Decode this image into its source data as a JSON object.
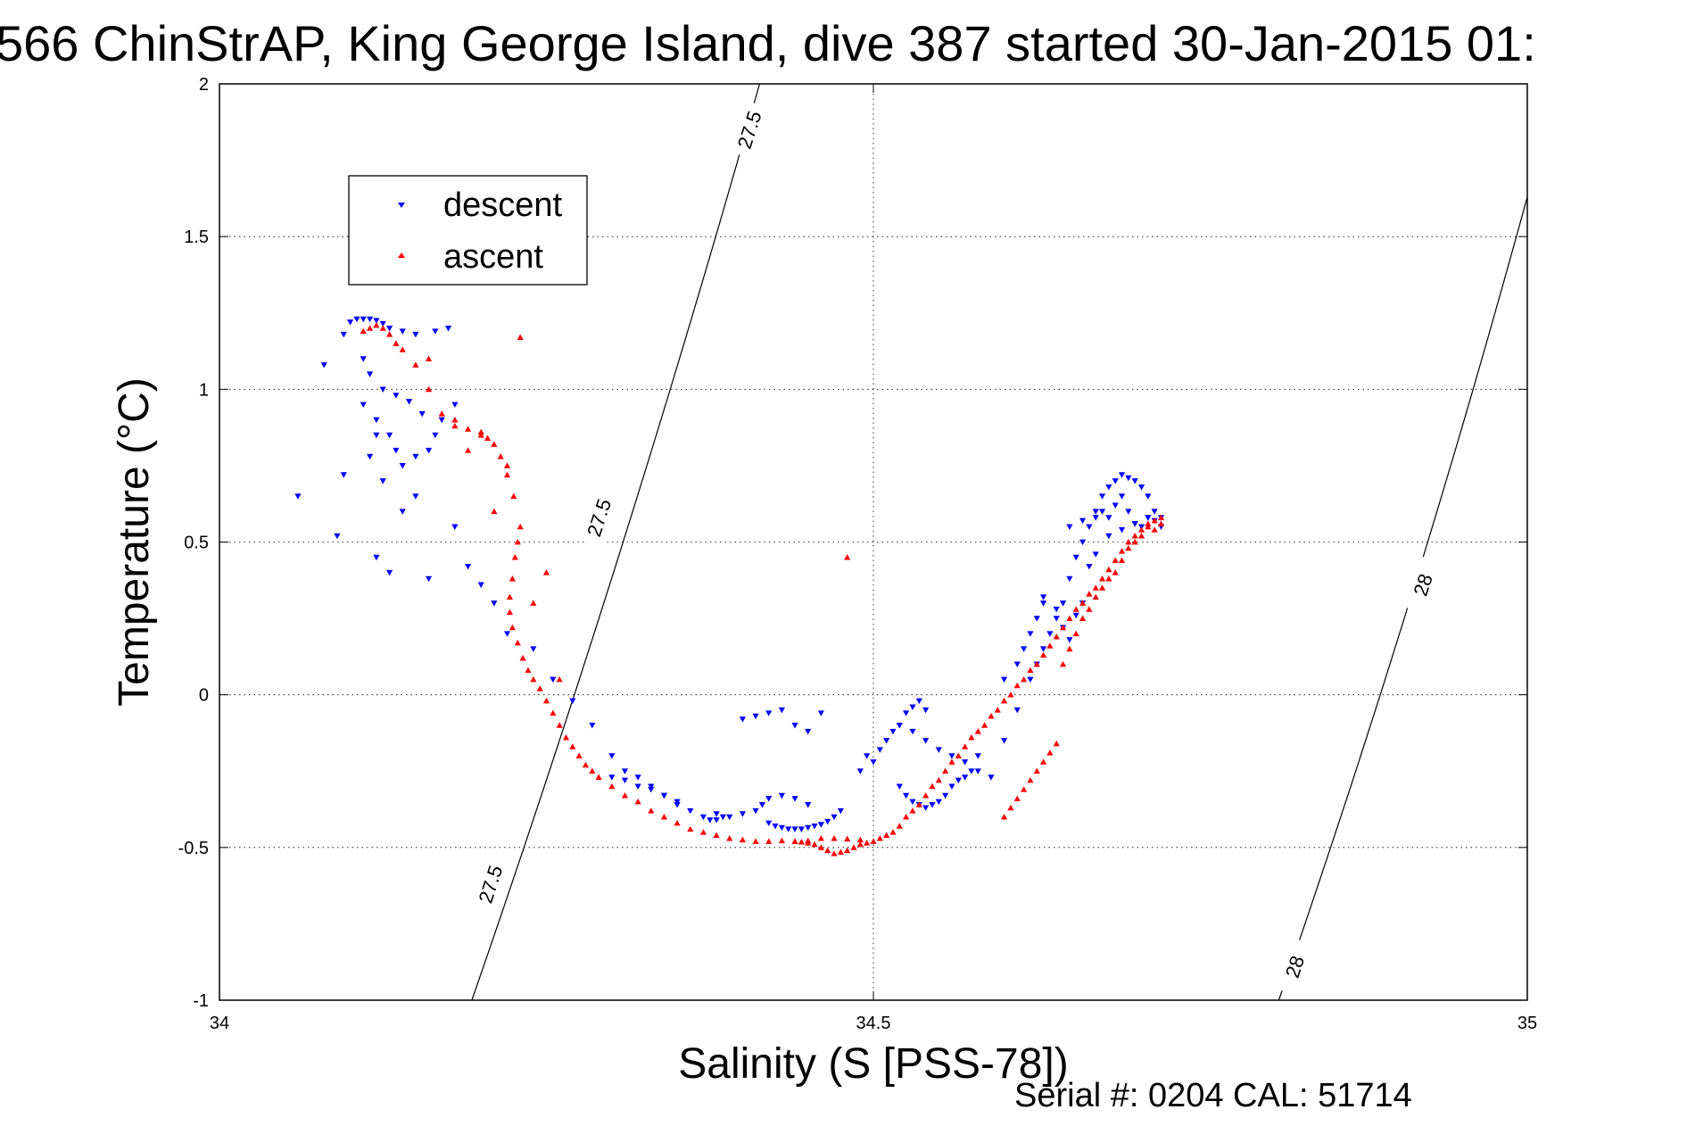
{
  "chart_data": {
    "type": "scatter",
    "title": "566 ChinStrAP, King George Island, dive 387 started 30-Jan-2015 01:",
    "xlabel": "Salinity (S [PSS-78])",
    "ylabel": "Temperature (°C)",
    "xlim": [
      34,
      35
    ],
    "ylim": [
      -1,
      2
    ],
    "x_ticks": [
      "34",
      "34.5",
      "35"
    ],
    "x_tick_values": [
      34,
      34.5,
      35
    ],
    "y_ticks": [
      "-1",
      "-0.5",
      "0",
      "0.5",
      "1",
      "1.5",
      "2"
    ],
    "y_tick_values": [
      -1,
      -0.5,
      0,
      0.5,
      1,
      1.5,
      2
    ],
    "grid": true,
    "legend_position": "top-left",
    "series": [
      {
        "name": "descent",
        "marker": "down-triangle",
        "color": "#0000ff",
        "x": [
          34.06,
          34.08,
          34.09,
          34.095,
          34.1,
          34.105,
          34.11,
          34.115,
          34.12,
          34.125,
          34.13,
          34.14,
          34.15,
          34.165,
          34.175,
          34.11,
          34.12,
          34.13,
          34.135,
          34.14,
          34.15,
          34.16,
          34.17,
          34.18,
          34.12,
          34.11,
          34.115,
          34.125,
          34.135,
          34.145,
          34.155,
          34.165,
          34.18,
          34.19,
          34.2,
          34.21,
          34.15,
          34.16,
          34.12,
          34.115,
          34.125,
          34.14,
          34.095,
          34.13,
          34.22,
          34.24,
          34.255,
          34.27,
          34.285,
          34.3,
          34.31,
          34.32,
          34.33,
          34.34,
          34.35,
          34.36,
          34.37,
          34.375,
          34.38,
          34.385,
          34.3,
          34.31,
          34.32,
          34.33,
          34.34,
          34.35,
          34.38,
          34.39,
          34.4,
          34.41,
          34.415,
          34.42,
          34.43,
          34.44,
          34.45,
          34.4,
          34.41,
          34.42,
          34.43,
          34.44,
          34.45,
          34.46,
          34.42,
          34.425,
          34.43,
          34.435,
          34.44,
          34.445,
          34.45,
          34.455,
          34.46,
          34.465,
          34.47,
          34.475,
          34.49,
          34.495,
          34.5,
          34.505,
          34.51,
          34.515,
          34.52,
          34.525,
          34.53,
          34.535,
          34.54,
          34.52,
          34.525,
          34.53,
          34.535,
          34.54,
          34.545,
          34.55,
          34.555,
          34.56,
          34.565,
          34.57,
          34.575,
          34.58,
          34.52,
          34.53,
          34.54,
          34.55,
          34.56,
          34.57,
          34.58,
          34.59,
          34.6,
          34.61,
          34.62,
          34.625,
          34.63,
          34.635,
          34.64,
          34.645,
          34.65,
          34.655,
          34.66,
          34.665,
          34.67,
          34.675,
          34.68,
          34.685,
          34.69,
          34.695,
          34.7,
          34.705,
          34.71,
          34.715,
          34.72,
          34.65,
          34.66,
          34.67,
          34.675,
          34.68,
          34.685,
          34.69,
          34.695,
          34.7,
          34.705,
          34.71,
          34.715,
          34.72,
          34.63,
          34.64,
          34.645,
          34.65,
          34.655,
          34.66,
          34.665,
          34.67,
          34.68,
          34.69,
          34.7,
          34.71,
          34.6,
          34.61,
          34.615,
          34.62,
          34.625,
          34.63
        ],
        "y": [
          0.65,
          1.08,
          0.52,
          1.18,
          1.22,
          1.23,
          1.23,
          1.23,
          1.225,
          1.215,
          1.2,
          1.19,
          1.18,
          1.19,
          1.2,
          0.95,
          0.9,
          0.85,
          0.8,
          0.75,
          0.78,
          0.8,
          0.9,
          0.95,
          0.45,
          1.1,
          1.05,
          1.0,
          0.98,
          0.96,
          0.92,
          0.85,
          0.55,
          0.42,
          0.36,
          0.3,
          0.65,
          0.38,
          0.85,
          0.78,
          0.7,
          0.6,
          0.72,
          0.4,
          0.2,
          0.15,
          0.05,
          -0.02,
          -0.1,
          -0.2,
          -0.25,
          -0.27,
          -0.3,
          -0.33,
          -0.35,
          -0.38,
          -0.4,
          -0.41,
          -0.41,
          -0.4,
          -0.27,
          -0.28,
          -0.3,
          -0.31,
          -0.33,
          -0.36,
          -0.39,
          -0.4,
          -0.39,
          -0.38,
          -0.36,
          -0.34,
          -0.33,
          -0.34,
          -0.36,
          -0.08,
          -0.07,
          -0.06,
          -0.05,
          -0.1,
          -0.12,
          -0.06,
          -0.42,
          -0.43,
          -0.435,
          -0.44,
          -0.44,
          -0.44,
          -0.435,
          -0.43,
          -0.425,
          -0.415,
          -0.4,
          -0.38,
          -0.25,
          -0.2,
          -0.22,
          -0.18,
          -0.15,
          -0.12,
          -0.1,
          -0.06,
          -0.04,
          -0.02,
          -0.05,
          -0.3,
          -0.33,
          -0.35,
          -0.36,
          -0.37,
          -0.36,
          -0.35,
          -0.33,
          -0.3,
          -0.28,
          -0.27,
          -0.25,
          -0.2,
          -0.1,
          -0.12,
          -0.15,
          -0.18,
          -0.2,
          -0.22,
          -0.25,
          -0.27,
          -0.15,
          -0.05,
          0.05,
          0.1,
          0.15,
          0.2,
          0.25,
          0.3,
          0.38,
          0.45,
          0.5,
          0.55,
          0.6,
          0.65,
          0.68,
          0.7,
          0.72,
          0.71,
          0.7,
          0.68,
          0.65,
          0.6,
          0.58,
          0.55,
          0.57,
          0.58,
          0.6,
          0.58,
          0.62,
          0.65,
          0.6,
          0.56,
          0.55,
          0.58,
          0.57,
          0.55,
          0.32,
          0.28,
          0.22,
          0.18,
          0.26,
          0.3,
          0.42,
          0.46,
          0.52,
          0.54,
          0.56,
          0.58,
          0.05,
          0.1,
          0.15,
          0.2,
          0.25,
          0.3
        ]
      },
      {
        "name": "ascent",
        "marker": "up-triangle",
        "color": "#ff0000",
        "x": [
          34.11,
          34.115,
          34.12,
          34.125,
          34.13,
          34.135,
          34.14,
          34.15,
          34.16,
          34.17,
          34.18,
          34.19,
          34.2,
          34.205,
          34.21,
          34.215,
          34.22,
          34.225,
          34.23,
          34.228,
          34.226,
          34.224,
          34.222,
          34.222,
          34.224,
          34.228,
          34.232,
          34.236,
          34.24,
          34.245,
          34.25,
          34.255,
          34.26,
          34.265,
          34.27,
          34.275,
          34.28,
          34.285,
          34.29,
          34.3,
          34.31,
          34.32,
          34.33,
          34.34,
          34.35,
          34.36,
          34.37,
          34.38,
          34.39,
          34.4,
          34.41,
          34.42,
          34.43,
          34.44,
          34.45,
          34.46,
          34.47,
          34.48,
          34.49,
          34.44,
          34.445,
          34.45,
          34.455,
          34.46,
          34.465,
          34.47,
          34.475,
          34.48,
          34.485,
          34.49,
          34.495,
          34.5,
          34.505,
          34.51,
          34.515,
          34.52,
          34.525,
          34.53,
          34.535,
          34.54,
          34.545,
          34.55,
          34.555,
          34.56,
          34.565,
          34.57,
          34.575,
          34.58,
          34.585,
          34.59,
          34.595,
          34.6,
          34.605,
          34.61,
          34.615,
          34.62,
          34.625,
          34.63,
          34.635,
          34.64,
          34.645,
          34.65,
          34.655,
          34.66,
          34.665,
          34.67,
          34.675,
          34.68,
          34.685,
          34.69,
          34.695,
          34.7,
          34.705,
          34.71,
          34.715,
          34.72,
          34.6,
          34.605,
          34.61,
          34.615,
          34.62,
          34.625,
          34.63,
          34.635,
          34.64,
          34.645,
          34.65,
          34.655,
          34.66,
          34.665,
          34.67,
          34.675,
          34.68,
          34.685,
          34.69,
          34.695,
          34.7,
          34.705,
          34.71,
          34.715,
          34.72,
          34.18,
          34.2,
          34.22,
          34.25,
          34.19,
          34.21,
          34.24,
          34.26,
          34.23,
          34.16,
          34.48
        ],
        "y": [
          1.19,
          1.2,
          1.21,
          1.2,
          1.18,
          1.15,
          1.13,
          1.08,
          1.0,
          0.92,
          0.88,
          0.87,
          0.86,
          0.84,
          0.82,
          0.78,
          0.72,
          0.65,
          0.55,
          0.5,
          0.45,
          0.38,
          0.32,
          0.27,
          0.22,
          0.17,
          0.12,
          0.08,
          0.05,
          0.02,
          -0.02,
          -0.06,
          -0.1,
          -0.14,
          -0.17,
          -0.2,
          -0.23,
          -0.25,
          -0.27,
          -0.3,
          -0.33,
          -0.35,
          -0.38,
          -0.4,
          -0.42,
          -0.44,
          -0.45,
          -0.46,
          -0.47,
          -0.475,
          -0.48,
          -0.48,
          -0.478,
          -0.48,
          -0.478,
          -0.47,
          -0.47,
          -0.472,
          -0.475,
          -0.48,
          -0.482,
          -0.485,
          -0.49,
          -0.5,
          -0.51,
          -0.52,
          -0.515,
          -0.51,
          -0.5,
          -0.49,
          -0.485,
          -0.48,
          -0.47,
          -0.46,
          -0.45,
          -0.43,
          -0.4,
          -0.38,
          -0.36,
          -0.33,
          -0.3,
          -0.28,
          -0.25,
          -0.22,
          -0.2,
          -0.17,
          -0.14,
          -0.12,
          -0.1,
          -0.07,
          -0.05,
          -0.02,
          0.0,
          0.03,
          0.05,
          0.08,
          0.1,
          0.13,
          0.16,
          0.19,
          0.22,
          0.25,
          0.28,
          0.3,
          0.33,
          0.35,
          0.38,
          0.41,
          0.44,
          0.47,
          0.5,
          0.52,
          0.54,
          0.56,
          0.57,
          0.58,
          -0.4,
          -0.37,
          -0.34,
          -0.31,
          -0.28,
          -0.25,
          -0.22,
          -0.19,
          -0.16,
          0.1,
          0.15,
          0.2,
          0.25,
          0.28,
          0.32,
          0.35,
          0.38,
          0.4,
          0.44,
          0.48,
          0.5,
          0.52,
          0.55,
          0.54,
          0.56,
          0.9,
          0.85,
          0.75,
          0.4,
          0.8,
          0.6,
          0.3,
          0.05,
          1.17,
          1.1,
          0.45
        ]
      }
    ],
    "contours": [
      {
        "label": "27.5",
        "from": {
          "x": 34.193,
          "y": -1
        },
        "to": {
          "x": 34.413,
          "y": 2
        }
      },
      {
        "label": "28",
        "from": {
          "x": 34.81,
          "y": -1
        },
        "to": {
          "x": 35.0,
          "y": 1.63
        }
      }
    ],
    "contour_labels": [
      {
        "text": "27.5",
        "x": 34.405,
        "y": 1.85
      },
      {
        "text": "27.5",
        "x": 34.29,
        "y": 0.58
      },
      {
        "text": "27.5",
        "x": 34.207,
        "y": -0.62
      },
      {
        "text": "28",
        "x": 34.92,
        "y": 0.36
      },
      {
        "text": "28",
        "x": 34.822,
        "y": -0.89
      }
    ]
  },
  "footer": {
    "serial": "Serial #: 0204  CAL: 51714"
  }
}
